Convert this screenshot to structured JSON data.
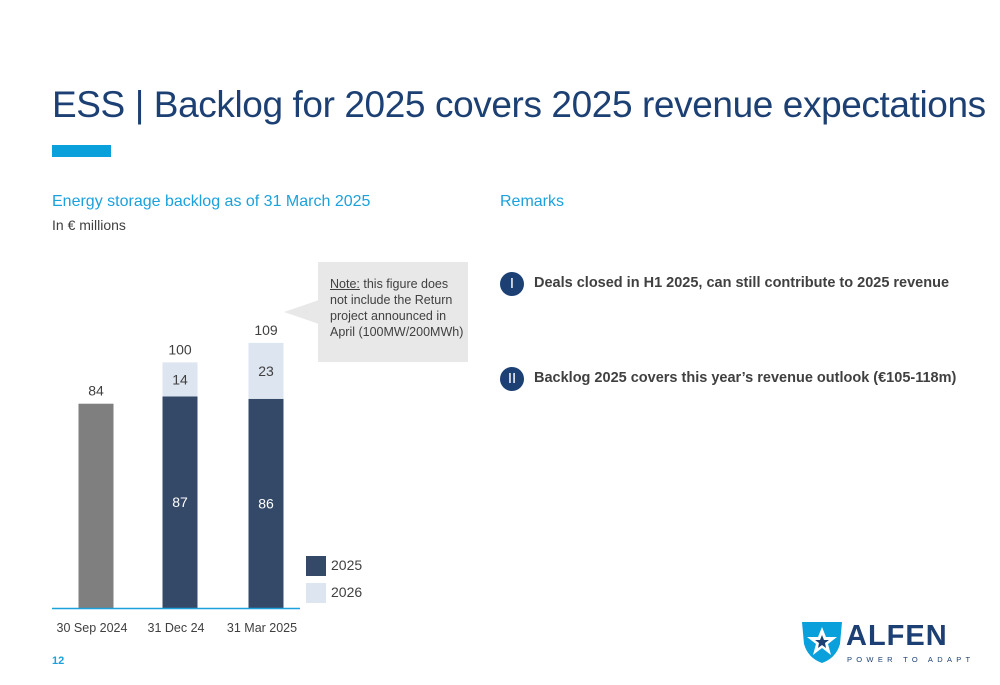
{
  "slide": {
    "title": "ESS | Backlog for 2025 covers 2025 revenue expectations",
    "page_number": "12",
    "accent_color": "#0aa0dc",
    "title_color": "#1c4073"
  },
  "left_section": {
    "heading": "Energy storage backlog as of 31 March 2025",
    "unit": "In € millions",
    "note_label": "Note:",
    "note_text": " this figure does not include the Return project announced in April (100MW/200MWh)"
  },
  "chart_data": {
    "type": "bar",
    "stacked": true,
    "categories": [
      "30 Sep 2024",
      "31 Dec 24",
      "31 Mar 2025"
    ],
    "series": [
      {
        "name": "",
        "color": "#7f7f7f",
        "values": [
          84,
          null,
          null
        ]
      },
      {
        "name": "2025",
        "color": "#344868",
        "values": [
          null,
          87,
          86
        ]
      },
      {
        "name": "2026",
        "color": "#dde5f0",
        "values": [
          null,
          14,
          23
        ]
      }
    ],
    "totals": [
      84,
      100,
      109
    ],
    "ylim": [
      0,
      125
    ],
    "grid": false,
    "legend": "right",
    "xlabel": "",
    "ylabel": ""
  },
  "legend": {
    "items": [
      {
        "label": "2025",
        "color": "#344868"
      },
      {
        "label": "2026",
        "color": "#dde5f0"
      }
    ]
  },
  "remarks": {
    "heading": "Remarks",
    "items": [
      {
        "badge": "I",
        "text": "Deals closed in H1 2025, can still contribute to 2025 revenue"
      },
      {
        "badge": "II",
        "text": "Backlog 2025 covers this year’s revenue outlook (€105-118m)"
      }
    ]
  },
  "logo": {
    "wordmark": "ALFEN",
    "tagline": "POWER TO ADAPT",
    "icon": "alfen-star-shield-icon"
  }
}
